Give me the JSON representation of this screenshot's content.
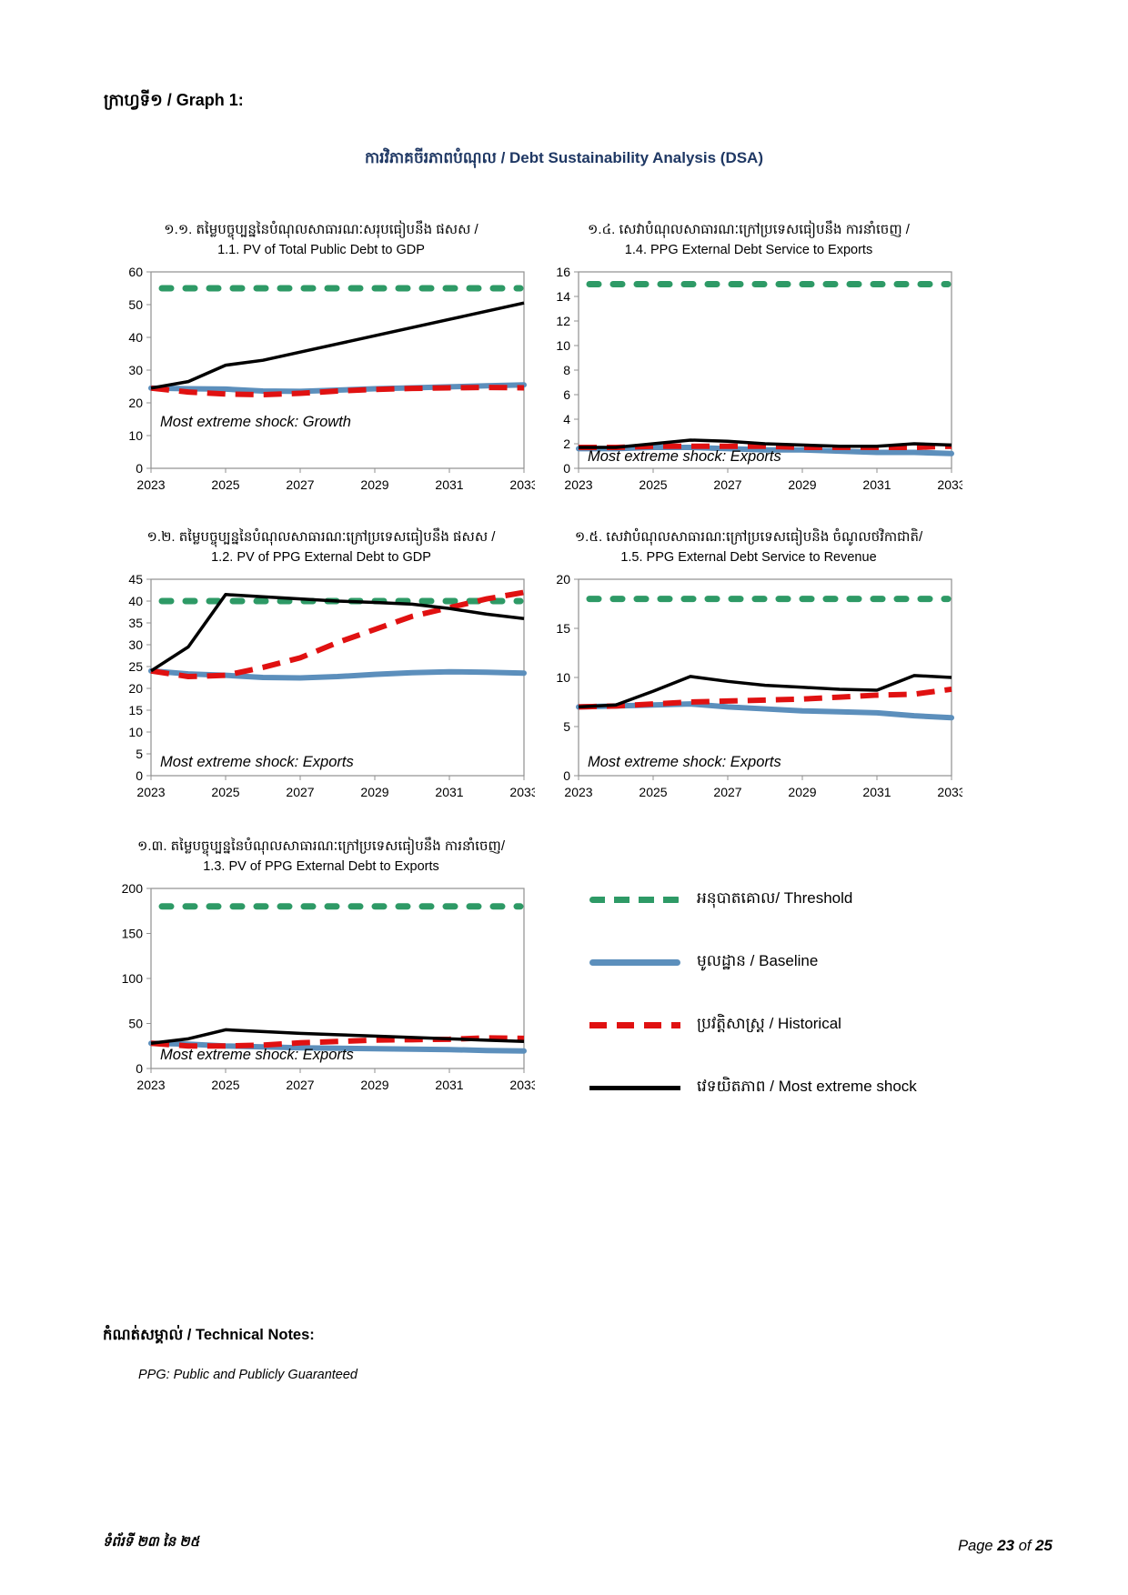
{
  "page_header": {
    "label": "ក្រាហ្វទី១ / Graph 1:"
  },
  "doc_title": {
    "text": "ការវិភាគចីរភាពបំណុល / Debt Sustainability Analysis (DSA)",
    "color": "#1F3864"
  },
  "colors": {
    "threshold": "#2E9A66",
    "baseline": "#5C8FBC",
    "historical": "#E01111",
    "shock": "#000000"
  },
  "chart_data": [
    {
      "type": "line",
      "title_km": "១.១. តម្លៃបច្ចុប្បន្ននៃបំណុលសាធារណៈសរុបធៀបនឹង ផសស /",
      "title_en": "1.1. PV of Total Public Debt to GDP",
      "annotation": "Most extreme shock: Growth",
      "x": [
        2023,
        2024,
        2025,
        2026,
        2027,
        2028,
        2029,
        2030,
        2031,
        2032,
        2033
      ],
      "xticks": [
        2023,
        2025,
        2027,
        2029,
        2031,
        2033
      ],
      "ylim": [
        0,
        60
      ],
      "yticks": [
        0,
        10,
        20,
        30,
        40,
        50,
        60
      ],
      "threshold": 55,
      "series": [
        {
          "key": "baseline",
          "name": "Baseline",
          "values": [
            24.5,
            24.3,
            24.2,
            23.6,
            23.5,
            23.9,
            24.3,
            24.6,
            24.9,
            25.2,
            25.5
          ]
        },
        {
          "key": "historical",
          "name": "Historical",
          "values": [
            24.5,
            23.3,
            22.7,
            22.5,
            22.9,
            23.6,
            24.1,
            24.4,
            24.6,
            24.7,
            24.6
          ]
        },
        {
          "key": "shock",
          "name": "Most extreme shock",
          "values": [
            24.5,
            26.5,
            31.5,
            33,
            35.5,
            38,
            40.5,
            43,
            45.5,
            48,
            50.5
          ]
        }
      ]
    },
    {
      "type": "line",
      "title_km": "១.២. តម្លៃបច្ចុប្បន្ននៃបំណុលសាធារណៈក្រៅប្រទេសធៀបនឹង ផសស /",
      "title_en": "1.2. PV of PPG External Debt to GDP",
      "annotation": "Most extreme shock: Exports",
      "x": [
        2023,
        2024,
        2025,
        2026,
        2027,
        2028,
        2029,
        2030,
        2031,
        2032,
        2033
      ],
      "xticks": [
        2023,
        2025,
        2027,
        2029,
        2031,
        2033
      ],
      "ylim": [
        0,
        45
      ],
      "yticks": [
        0,
        5,
        10,
        15,
        20,
        25,
        30,
        35,
        40,
        45
      ],
      "threshold": 40,
      "series": [
        {
          "key": "baseline",
          "name": "Baseline",
          "values": [
            24,
            23.3,
            23,
            22.5,
            22.4,
            22.7,
            23.2,
            23.6,
            23.8,
            23.7,
            23.5
          ]
        },
        {
          "key": "historical",
          "name": "Historical",
          "values": [
            24,
            22.7,
            23,
            24.8,
            27,
            30.5,
            33.5,
            36.5,
            38.5,
            40.5,
            42
          ]
        },
        {
          "key": "shock",
          "name": "Most extreme shock",
          "values": [
            24,
            29.5,
            41.5,
            41,
            40.5,
            40,
            39.7,
            39.3,
            38.3,
            37,
            36
          ]
        }
      ]
    },
    {
      "type": "line",
      "title_km": "១.៣. តម្លៃបច្ចុប្បន្ននៃបំណុលសាធារណៈក្រៅប្រទេសធៀបនឹង ការនាំចេញ/",
      "title_en": "1.3. PV of PPG External Debt to Exports",
      "annotation": "Most extreme shock: Exports",
      "x": [
        2023,
        2024,
        2025,
        2026,
        2027,
        2028,
        2029,
        2030,
        2031,
        2032,
        2033
      ],
      "xticks": [
        2023,
        2025,
        2027,
        2029,
        2031,
        2033
      ],
      "ylim": [
        0,
        200
      ],
      "yticks": [
        0,
        50,
        100,
        150,
        200
      ],
      "threshold": 180,
      "series": [
        {
          "key": "baseline",
          "name": "Baseline",
          "values": [
            28,
            27,
            25,
            24,
            23,
            22.5,
            22,
            21.5,
            21,
            20,
            19.5
          ]
        },
        {
          "key": "historical",
          "name": "Historical",
          "values": [
            28,
            25,
            25,
            26,
            28.5,
            30,
            31.5,
            32,
            32.5,
            34,
            33.5
          ]
        },
        {
          "key": "shock",
          "name": "Most extreme shock",
          "values": [
            28,
            33,
            43,
            41,
            39,
            37.5,
            36,
            34.5,
            33,
            31.5,
            30
          ]
        }
      ]
    },
    {
      "type": "line",
      "title_km": "១.៤. សេវាបំណុលសាធារណៈក្រៅប្រទេសធៀបនឹង ការនាំចេញ /",
      "title_en": "1.4. PPG External Debt Service to Exports",
      "annotation": "Most extreme shock: Exports",
      "x": [
        2023,
        2024,
        2025,
        2026,
        2027,
        2028,
        2029,
        2030,
        2031,
        2032,
        2033
      ],
      "xticks": [
        2023,
        2025,
        2027,
        2029,
        2031,
        2033
      ],
      "ylim": [
        0,
        16
      ],
      "yticks": [
        0,
        2,
        4,
        6,
        8,
        10,
        12,
        14,
        16
      ],
      "threshold": 15,
      "series": [
        {
          "key": "baseline",
          "name": "Baseline",
          "values": [
            1.6,
            1.6,
            1.7,
            1.7,
            1.6,
            1.5,
            1.5,
            1.4,
            1.3,
            1.3,
            1.2
          ]
        },
        {
          "key": "historical",
          "name": "Historical",
          "values": [
            1.7,
            1.7,
            1.8,
            1.8,
            1.8,
            1.8,
            1.7,
            1.7,
            1.7,
            1.7,
            1.8
          ]
        },
        {
          "key": "shock",
          "name": "Most extreme shock",
          "values": [
            1.7,
            1.7,
            2,
            2.3,
            2.2,
            2,
            1.9,
            1.8,
            1.8,
            2,
            1.9
          ]
        }
      ]
    },
    {
      "type": "line",
      "title_km": "១.៥. សេវាបំណុលសាធារណៈក្រៅប្រទេសធៀបនិង ចំណូលថវិកាជាតិ/",
      "title_en": "1.5. PPG External Debt Service to Revenue",
      "annotation": "Most extreme shock: Exports",
      "x": [
        2023,
        2024,
        2025,
        2026,
        2027,
        2028,
        2029,
        2030,
        2031,
        2032,
        2033
      ],
      "xticks": [
        2023,
        2025,
        2027,
        2029,
        2031,
        2033
      ],
      "ylim": [
        0,
        20
      ],
      "yticks": [
        0,
        5,
        10,
        15,
        20
      ],
      "threshold": 18,
      "series": [
        {
          "key": "baseline",
          "name": "Baseline",
          "values": [
            7,
            7.1,
            7.2,
            7.3,
            7,
            6.8,
            6.6,
            6.5,
            6.4,
            6.1,
            5.9
          ]
        },
        {
          "key": "historical",
          "name": "Historical",
          "values": [
            7,
            7.1,
            7.3,
            7.5,
            7.6,
            7.7,
            7.8,
            8,
            8.2,
            8.3,
            8.8
          ]
        },
        {
          "key": "shock",
          "name": "Most extreme shock",
          "values": [
            7,
            7.2,
            8.6,
            10.1,
            9.6,
            9.2,
            9,
            8.8,
            8.7,
            10.2,
            10
          ]
        }
      ]
    }
  ],
  "legend": {
    "items": [
      {
        "key": "threshold",
        "label": "អនុបាតគោល/ Threshold"
      },
      {
        "key": "baseline",
        "label": "មូលដ្ឋាន / Baseline"
      },
      {
        "key": "historical",
        "label": "ប្រវត្តិសាស្ត្រ / Historical"
      },
      {
        "key": "shock",
        "label": "វេទយិតភាព / Most extreme shock"
      }
    ]
  },
  "notes": {
    "heading": "កំណត់សម្គាល់ / Technical Notes:",
    "body": "PPG: Public and Publicly Guaranteed"
  },
  "footer": {
    "left": "ទំព័រទី ២៣ នៃ ២៥",
    "page_word": "Page",
    "page_number": "23",
    "of_word": "of",
    "total_pages": "25"
  }
}
